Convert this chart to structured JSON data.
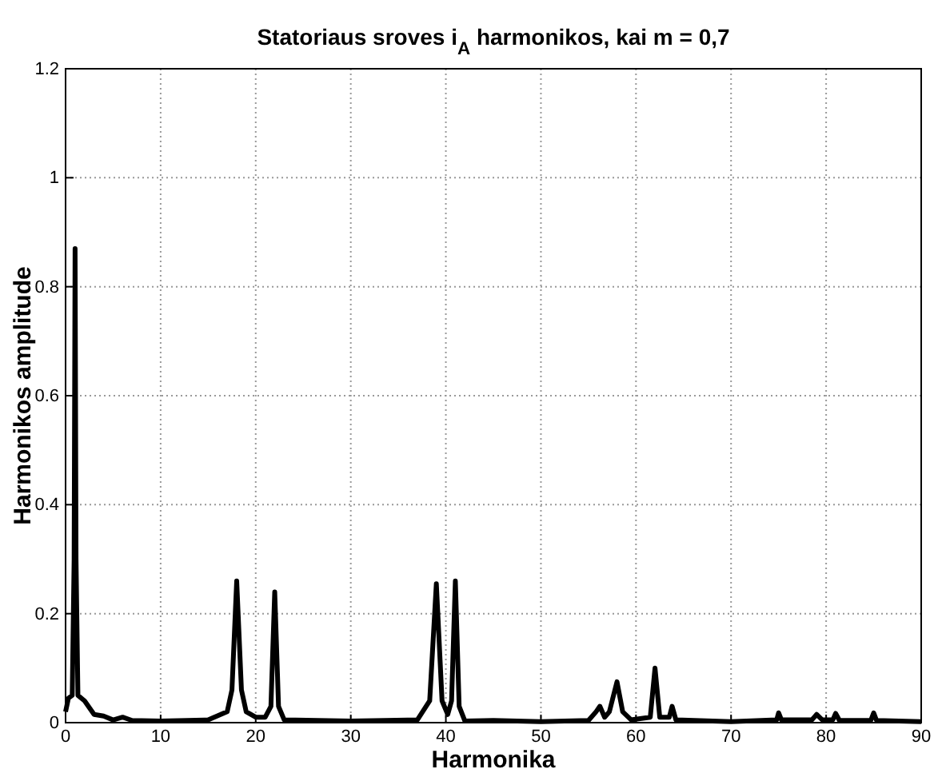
{
  "chart_data": {
    "type": "line",
    "title": "Statoriaus sroves i$_{A}$ harmonikos, kai m = 0,7",
    "xlabel": "Harmonika",
    "ylabel": "Harmonikos amplitude",
    "xlim": [
      0,
      90
    ],
    "ylim": [
      0,
      1.2
    ],
    "xticks": [
      0,
      10,
      20,
      30,
      40,
      50,
      60,
      70,
      80,
      90
    ],
    "yticks": [
      0,
      0.2,
      0.4,
      0.6,
      0.8,
      1,
      1.2
    ],
    "grid": true,
    "line_style": "solid",
    "series": [
      {
        "color": "#000000",
        "x": [
          0,
          0.3,
          0.7,
          0.9,
          1,
          1.1,
          1.3,
          2,
          3,
          4,
          5,
          6,
          7,
          10,
          15,
          17,
          17.5,
          18,
          18.5,
          19,
          20,
          21,
          21.6,
          22,
          22.4,
          23,
          30,
          37,
          38.3,
          39,
          39.6,
          40.2,
          40.6,
          41,
          41.4,
          42,
          45,
          50,
          55,
          55.8,
          56.2,
          56.7,
          57.2,
          58,
          58.6,
          59.5,
          61.5,
          62,
          62.5,
          63.5,
          63.8,
          64.2,
          70,
          74.8,
          75,
          75.3,
          78.5,
          79,
          79.6,
          80.7,
          81,
          81.4,
          84.7,
          85,
          85.3,
          90
        ],
        "values": [
          0.02,
          0.045,
          0.05,
          0.3,
          0.87,
          0.3,
          0.05,
          0.04,
          0.015,
          0.012,
          0.005,
          0.01,
          0.004,
          0.003,
          0.005,
          0.02,
          0.06,
          0.26,
          0.06,
          0.02,
          0.01,
          0.01,
          0.03,
          0.24,
          0.03,
          0.005,
          0.003,
          0.005,
          0.04,
          0.255,
          0.04,
          0.015,
          0.04,
          0.26,
          0.03,
          0.003,
          0.004,
          0.002,
          0.004,
          0.02,
          0.03,
          0.01,
          0.02,
          0.075,
          0.02,
          0.005,
          0.01,
          0.1,
          0.01,
          0.01,
          0.03,
          0.005,
          0.002,
          0.005,
          0.018,
          0.005,
          0.005,
          0.015,
          0.005,
          0.005,
          0.017,
          0.004,
          0.004,
          0.018,
          0.004,
          0.002
        ]
      }
    ]
  }
}
